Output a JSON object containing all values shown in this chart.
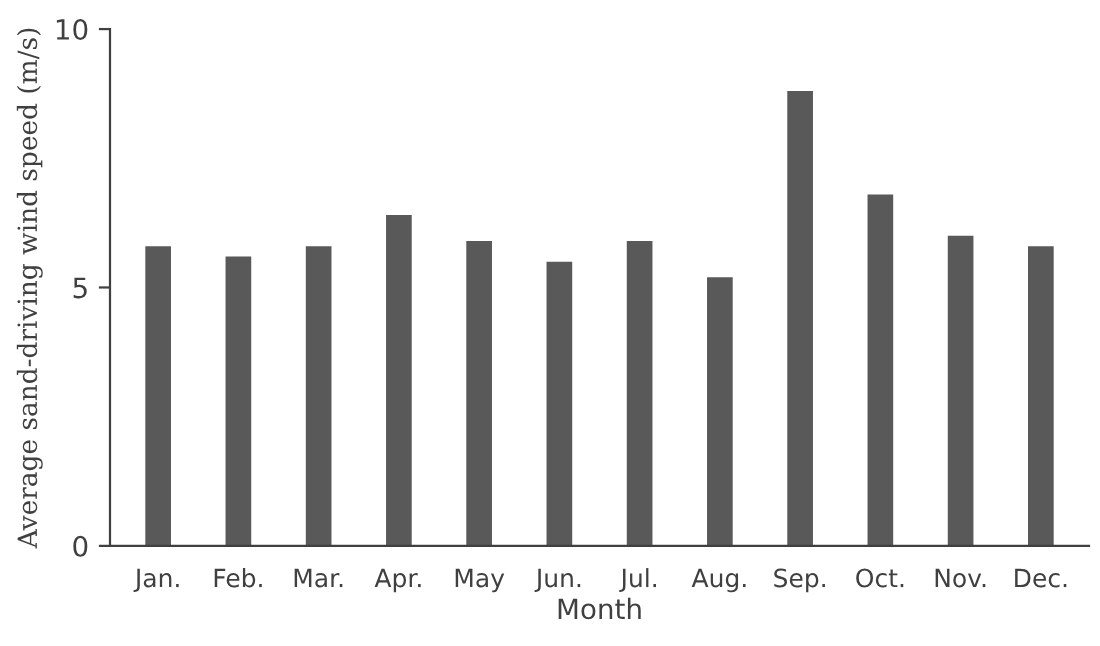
{
  "chart_data": {
    "type": "bar",
    "xlabel": "Month",
    "ylabel": "Average sand-driving wind speed (m/s)",
    "categories": [
      "Jan.",
      "Feb.",
      "Mar.",
      "Apr.",
      "May",
      "Jun.",
      "Jul.",
      "Aug.",
      "Sep.",
      "Oct.",
      "Nov.",
      "Dec."
    ],
    "values": [
      5.8,
      5.6,
      5.8,
      6.4,
      5.9,
      5.5,
      5.9,
      5.2,
      8.8,
      6.8,
      6.0,
      5.8
    ],
    "color": "#595959",
    "ylim": [
      0,
      10
    ],
    "yticks": [
      0,
      5,
      10
    ],
    "grid": false,
    "legend": false
  }
}
